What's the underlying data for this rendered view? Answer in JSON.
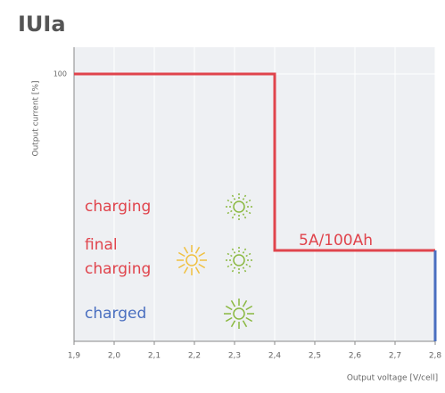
{
  "chart_data": {
    "type": "line",
    "title": "IUIa",
    "ylabel": "Output current [%]",
    "xlabel": "Output voltage [V/cell]",
    "xlim": [
      1.9,
      2.8
    ],
    "ylim": [
      0,
      110
    ],
    "xticks": [
      {
        "value": 1.9,
        "label": "1,9"
      },
      {
        "value": 2.0,
        "label": "2,0"
      },
      {
        "value": 2.1,
        "label": "2,1"
      },
      {
        "value": 2.2,
        "label": "2,2"
      },
      {
        "value": 2.3,
        "label": "2,3"
      },
      {
        "value": 2.4,
        "label": "2,4"
      },
      {
        "value": 2.5,
        "label": "2,5"
      },
      {
        "value": 2.6,
        "label": "2,6"
      },
      {
        "value": 2.7,
        "label": "2,7"
      },
      {
        "value": 2.8,
        "label": "2,8"
      }
    ],
    "yticks": [
      100
    ],
    "grid": true,
    "series": [
      {
        "color": "#e0444c",
        "x": [
          1.9,
          2.4,
          2.4,
          2.8
        ],
        "values": [
          100,
          100,
          34,
          34
        ]
      },
      {
        "color": "#4a6fc0",
        "x": [
          2.8,
          2.8
        ],
        "values": [
          34,
          0
        ]
      }
    ],
    "annotations": [
      {
        "lines": [
          "charging"
        ],
        "color": "#e0444c"
      },
      {
        "lines": [
          "final",
          "charging"
        ],
        "color": "#e0444c"
      },
      {
        "lines": [
          "charged"
        ],
        "color": "#4a6fc0"
      },
      {
        "lines": [
          "5A/100Ah"
        ],
        "color": "#e0444c"
      }
    ]
  }
}
